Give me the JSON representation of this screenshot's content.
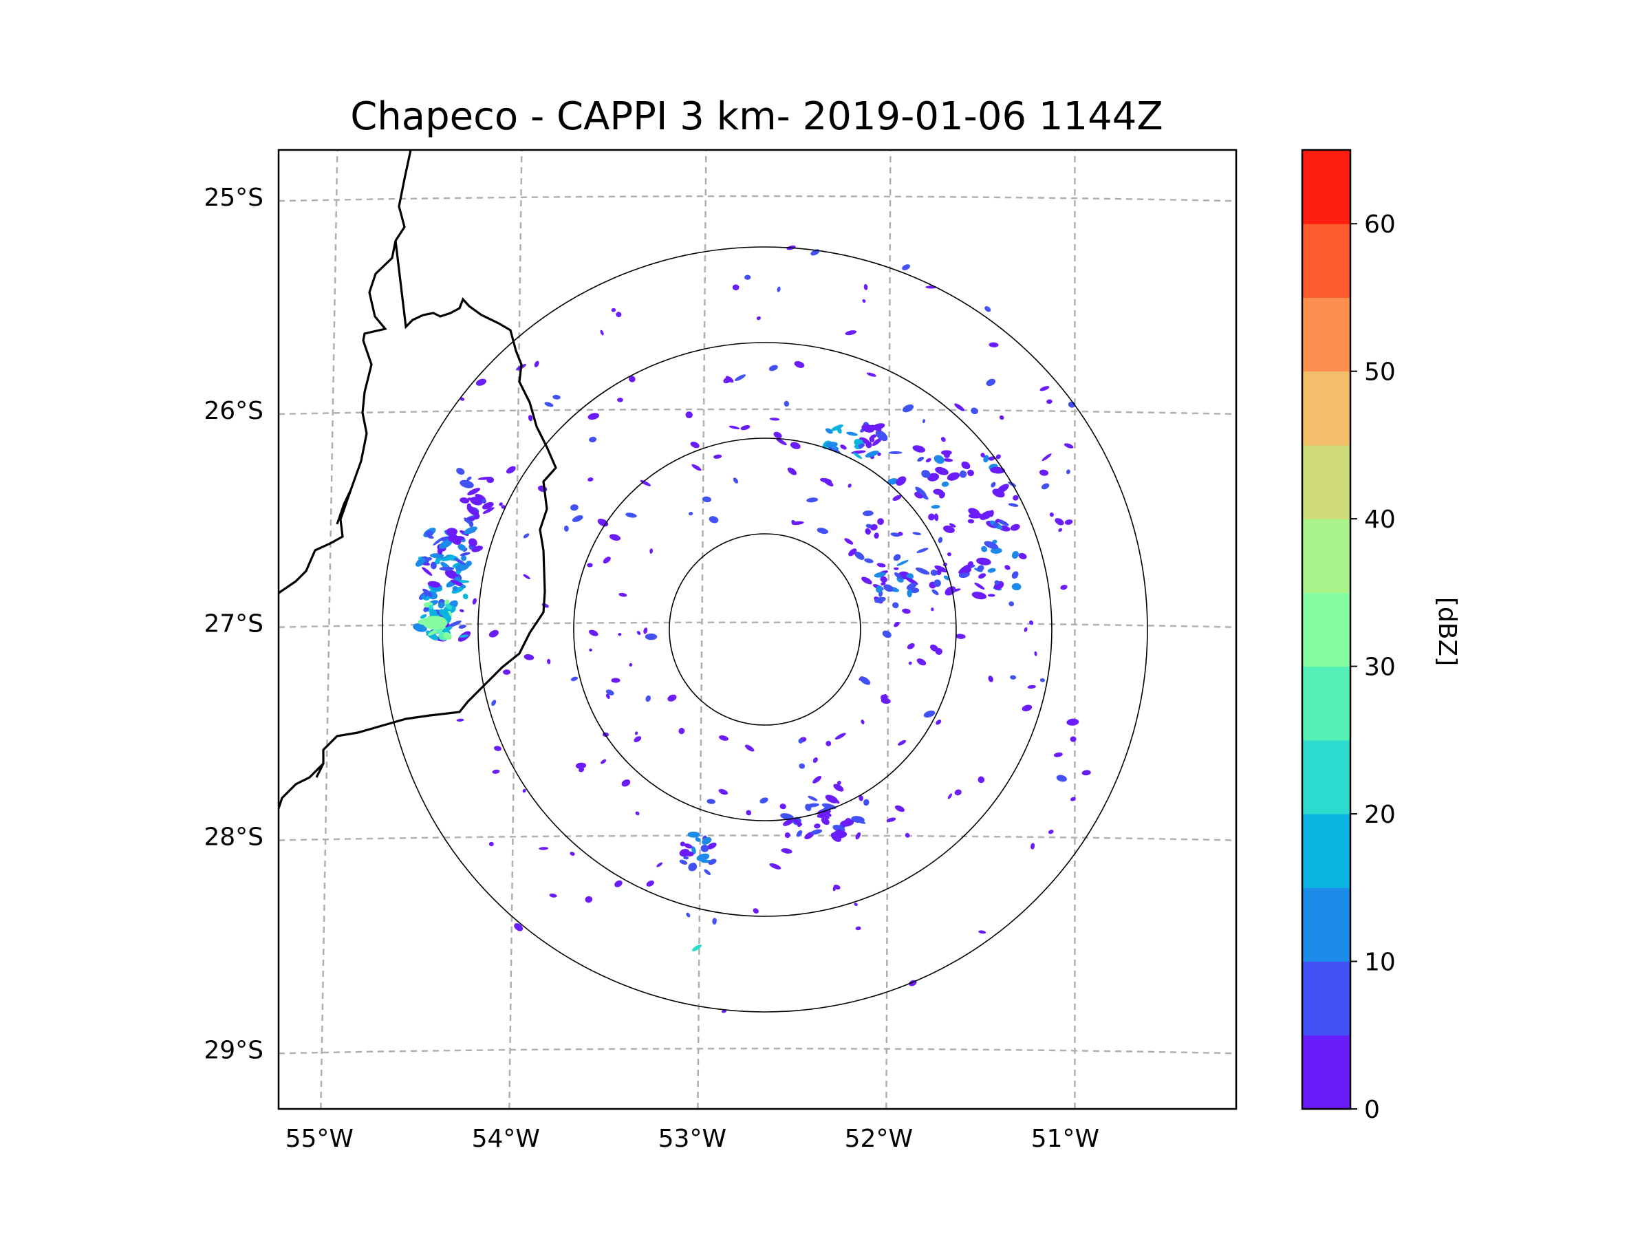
{
  "title": "Chapeco - CAPPI 3 km- 2019-01-06 1144Z",
  "map": {
    "lon_range": [
      -55.18,
      -50.1
    ],
    "lat_range": [
      -29.28,
      -24.78
    ],
    "x_ticks": [
      {
        "value": -55,
        "label": "55°W"
      },
      {
        "value": -54,
        "label": "54°W"
      },
      {
        "value": -53,
        "label": "53°W"
      },
      {
        "value": -52,
        "label": "52°W"
      },
      {
        "value": -51,
        "label": "51°W"
      }
    ],
    "y_ticks": [
      {
        "value": -25,
        "label": "25°S"
      },
      {
        "value": -26,
        "label": "26°S"
      },
      {
        "value": -27,
        "label": "27°S"
      },
      {
        "value": -28,
        "label": "28°S"
      },
      {
        "value": -29,
        "label": "29°S"
      }
    ],
    "radar_center": {
      "lon": -52.6,
      "lat": -27.03
    },
    "range_rings_km": [
      50,
      100,
      150,
      200
    ],
    "gridlines": "dashed gray",
    "borders": "black lines (state / international boundaries)"
  },
  "colorbar": {
    "label": "[dBZ]",
    "min": 0,
    "max": 65,
    "step": 5,
    "tick_values": [
      0,
      10,
      20,
      30,
      40,
      50,
      60
    ],
    "tick_labels": [
      "0",
      "10",
      "20",
      "30",
      "40",
      "50",
      "60"
    ],
    "colors": [
      "#6b1cfb",
      "#4151f5",
      "#1c8ae9",
      "#0ab4df",
      "#2ddccf",
      "#55f2b8",
      "#86fe9f",
      "#a8f48a",
      "#cfdc77",
      "#f3be6a",
      "#fe8f4e",
      "#fe5a30",
      "#ff1d0f"
    ]
  },
  "echoes": {
    "legend_position": "right of map",
    "description_values": "reflectivity cells mostly 0-10 dBZ, strongest cell ~30 dBZ near 54.4°W 27.0°S"
  }
}
